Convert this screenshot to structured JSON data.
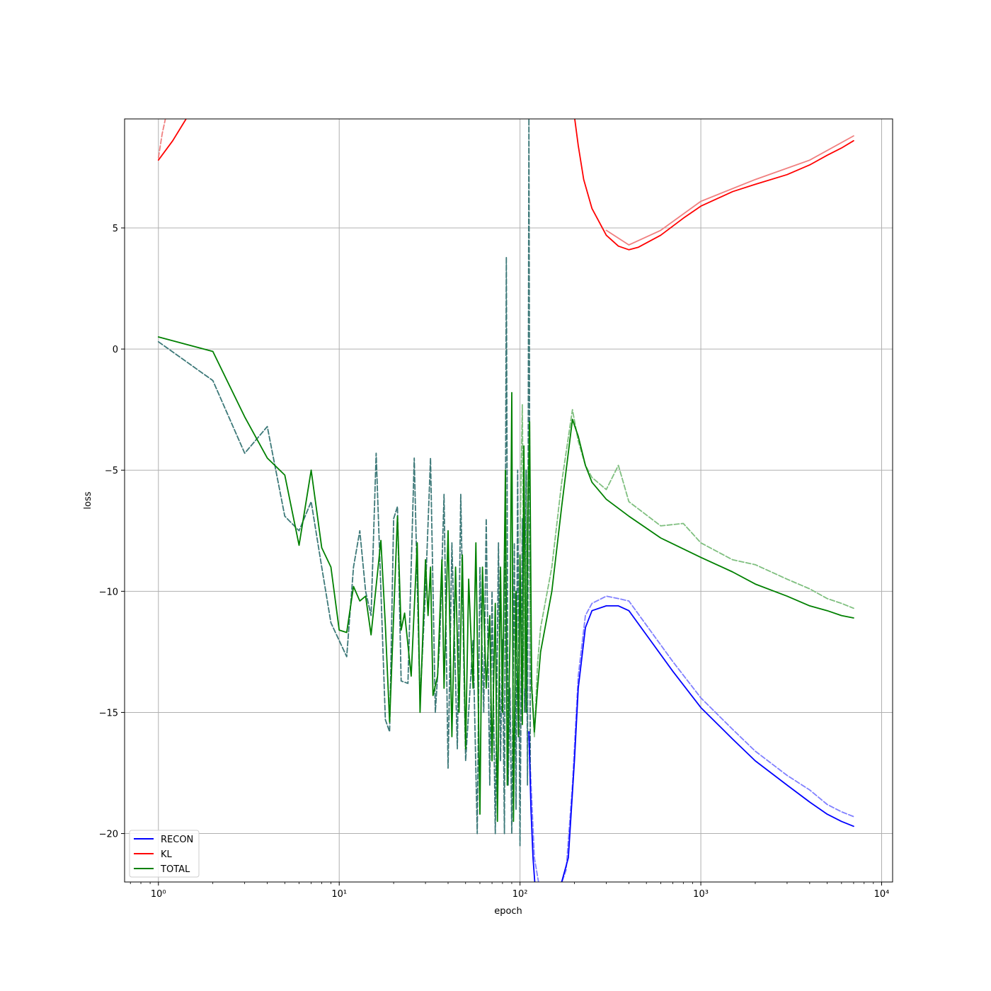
{
  "chart_data": {
    "type": "line",
    "xlabel": "epoch",
    "ylabel": "loss",
    "xscale": "log",
    "xlim": [
      0.65,
      11500
    ],
    "ylim": [
      -22.0,
      9.5
    ],
    "grid": true,
    "legend_position": "lower-left",
    "x_ticks": [
      {
        "value": 1,
        "label": "10⁰"
      },
      {
        "value": 10,
        "label": "10¹"
      },
      {
        "value": 100,
        "label": "10²"
      },
      {
        "value": 1000,
        "label": "10³"
      },
      {
        "value": 10000,
        "label": "10⁴"
      }
    ],
    "y_ticks": [
      {
        "value": 5,
        "label": "5"
      },
      {
        "value": 0,
        "label": "0"
      },
      {
        "value": -5,
        "label": "−5"
      },
      {
        "value": -10,
        "label": "−10"
      },
      {
        "value": -15,
        "label": "−15"
      },
      {
        "value": -20,
        "label": "−20"
      }
    ],
    "series": [
      {
        "name": "RECON",
        "color": "#0000ff",
        "style": "solid",
        "points": [
          [
            112,
            -15.8
          ],
          [
            115,
            -19
          ],
          [
            118,
            -21
          ],
          [
            122,
            -22.5
          ],
          [
            150,
            -23
          ],
          [
            170,
            -22
          ],
          [
            185,
            -21
          ],
          [
            200,
            -17
          ],
          [
            210,
            -14
          ],
          [
            230,
            -11.5
          ],
          [
            250,
            -10.8
          ],
          [
            300,
            -10.6
          ],
          [
            350,
            -10.6
          ],
          [
            400,
            -10.8
          ],
          [
            500,
            -11.8
          ],
          [
            700,
            -13.3
          ],
          [
            1000,
            -14.8
          ],
          [
            1500,
            -16.1
          ],
          [
            2000,
            -17
          ],
          [
            3000,
            -18
          ],
          [
            4000,
            -18.7
          ],
          [
            5000,
            -19.2
          ],
          [
            6000,
            -19.5
          ],
          [
            7000,
            -19.7
          ]
        ]
      },
      {
        "name": "",
        "color": "#8080ff",
        "style": "dashed",
        "points": [
          [
            112,
            -16
          ],
          [
            120,
            -21
          ],
          [
            130,
            -22.5
          ],
          [
            160,
            -22.6
          ],
          [
            180,
            -21.5
          ],
          [
            195,
            -18
          ],
          [
            210,
            -13.5
          ],
          [
            230,
            -11
          ],
          [
            250,
            -10.5
          ],
          [
            300,
            -10.2
          ],
          [
            350,
            -10.3
          ],
          [
            400,
            -10.4
          ],
          [
            500,
            -11.4
          ],
          [
            700,
            -12.9
          ],
          [
            1000,
            -14.4
          ],
          [
            1500,
            -15.7
          ],
          [
            2000,
            -16.6
          ],
          [
            3000,
            -17.6
          ],
          [
            4000,
            -18.2
          ],
          [
            5000,
            -18.8
          ],
          [
            6000,
            -19.1
          ],
          [
            7000,
            -19.3
          ]
        ]
      },
      {
        "name": "KL",
        "color": "#ff0000",
        "style": "solid",
        "points": [
          [
            1,
            7.8
          ],
          [
            1.2,
            8.6
          ],
          [
            1.45,
            9.6
          ],
          [
            200,
            9.6
          ],
          [
            210,
            8.4
          ],
          [
            225,
            7
          ],
          [
            250,
            5.8
          ],
          [
            300,
            4.7
          ],
          [
            350,
            4.25
          ],
          [
            400,
            4.1
          ],
          [
            450,
            4.2
          ],
          [
            600,
            4.7
          ],
          [
            800,
            5.4
          ],
          [
            1000,
            5.9
          ],
          [
            1500,
            6.5
          ],
          [
            2000,
            6.8
          ],
          [
            3000,
            7.2
          ],
          [
            4000,
            7.6
          ],
          [
            5000,
            8.0
          ],
          [
            6000,
            8.3
          ],
          [
            7000,
            8.6
          ]
        ]
      },
      {
        "name": "",
        "color": "#f08080",
        "style": "dashed",
        "points": [
          [
            1,
            7.9
          ],
          [
            1.05,
            8.9
          ],
          [
            1.1,
            9.6
          ]
        ]
      },
      {
        "name": "",
        "color": "#f08080",
        "style": "solid",
        "points": [
          [
            300,
            4.9
          ],
          [
            400,
            4.3
          ],
          [
            600,
            4.9
          ],
          [
            1000,
            6.1
          ],
          [
            2000,
            7.0
          ],
          [
            4000,
            7.8
          ],
          [
            7000,
            8.8
          ]
        ]
      },
      {
        "name": "TOTAL",
        "color": "#008000",
        "style": "solid",
        "points": [
          [
            1,
            0.5
          ],
          [
            2,
            -0.1
          ],
          [
            3,
            -2.8
          ],
          [
            4,
            -4.5
          ],
          [
            5,
            -5.2
          ],
          [
            6,
            -8.1
          ],
          [
            7,
            -5
          ],
          [
            8,
            -8.2
          ],
          [
            9,
            -9
          ],
          [
            10,
            -11.6
          ],
          [
            11,
            -11.7
          ],
          [
            12,
            -9.8
          ],
          [
            13,
            -10.4
          ],
          [
            14,
            -10.2
          ],
          [
            15,
            -11.8
          ],
          [
            17,
            -7.9
          ],
          [
            18,
            -11.4
          ],
          [
            19,
            -15.4
          ],
          [
            21,
            -6.9
          ],
          [
            22,
            -11.6
          ],
          [
            23,
            -10.9
          ],
          [
            25,
            -13.5
          ],
          [
            27,
            -8
          ],
          [
            28,
            -15
          ],
          [
            30,
            -8.7
          ],
          [
            31,
            -11
          ],
          [
            32,
            -9
          ],
          [
            33,
            -14.3
          ],
          [
            35,
            -13.5
          ],
          [
            37,
            -8.7
          ],
          [
            38,
            -14
          ],
          [
            40,
            -7.5
          ],
          [
            42,
            -16
          ],
          [
            44,
            -9
          ],
          [
            46,
            -15
          ],
          [
            48,
            -8.5
          ],
          [
            50,
            -16.5
          ],
          [
            52,
            -9.5
          ],
          [
            55,
            -14
          ],
          [
            57,
            -8
          ],
          [
            60,
            -19.2
          ],
          [
            62,
            -9
          ],
          [
            65,
            -14
          ],
          [
            68,
            -11
          ],
          [
            70,
            -17
          ],
          [
            73,
            -10.5
          ],
          [
            75,
            -19.5
          ],
          [
            78,
            -9
          ],
          [
            80,
            -15
          ],
          [
            83,
            -5
          ],
          [
            85,
            -18
          ],
          [
            88,
            -12
          ],
          [
            90,
            -1.8
          ],
          [
            92,
            -19.5
          ],
          [
            95,
            -10
          ],
          [
            98,
            -16
          ],
          [
            100,
            -8.5
          ],
          [
            103,
            -15.5
          ],
          [
            105,
            -4
          ],
          [
            108,
            -15
          ],
          [
            110,
            -8
          ],
          [
            113,
            -3
          ],
          [
            116,
            -14
          ],
          [
            120,
            -15.8
          ],
          [
            125,
            -14
          ],
          [
            130,
            -12.5
          ],
          [
            150,
            -10
          ],
          [
            170,
            -6.5
          ],
          [
            195,
            -2.9
          ],
          [
            210,
            -3.6
          ],
          [
            230,
            -4.8
          ],
          [
            250,
            -5.5
          ],
          [
            300,
            -6.2
          ],
          [
            400,
            -6.9
          ],
          [
            600,
            -7.8
          ],
          [
            1000,
            -8.6
          ],
          [
            1500,
            -9.2
          ],
          [
            2000,
            -9.7
          ],
          [
            3000,
            -10.2
          ],
          [
            4000,
            -10.6
          ],
          [
            5000,
            -10.8
          ],
          [
            6000,
            -11
          ],
          [
            7000,
            -11.1
          ]
        ]
      },
      {
        "name": "",
        "color": "#3c7878",
        "style": "dashed",
        "points": [
          [
            1,
            0.3
          ],
          [
            2,
            -1.3
          ],
          [
            3,
            -4.3
          ],
          [
            4,
            -3.2
          ],
          [
            5,
            -6.9
          ],
          [
            6,
            -7.5
          ],
          [
            7,
            -6.3
          ],
          [
            8,
            -9
          ],
          [
            9,
            -11.3
          ],
          [
            11,
            -12.7
          ],
          [
            12,
            -9
          ],
          [
            13,
            -7.5
          ],
          [
            14,
            -10
          ],
          [
            15,
            -11
          ],
          [
            16,
            -4.3
          ],
          [
            18,
            -15.3
          ],
          [
            19,
            -15.8
          ],
          [
            20,
            -7
          ],
          [
            21,
            -6.5
          ],
          [
            22,
            -13.7
          ],
          [
            24,
            -13.8
          ],
          [
            26,
            -4.5
          ],
          [
            28,
            -14.5
          ],
          [
            30,
            -10
          ],
          [
            32,
            -4.5
          ],
          [
            34,
            -15
          ],
          [
            36,
            -12
          ],
          [
            38,
            -6
          ],
          [
            40,
            -17.3
          ],
          [
            42,
            -8
          ],
          [
            45,
            -16.5
          ],
          [
            47,
            -6
          ],
          [
            50,
            -17
          ],
          [
            55,
            -12
          ],
          [
            58,
            -20
          ],
          [
            60,
            -9
          ],
          [
            63,
            -15
          ],
          [
            65,
            -7
          ],
          [
            68,
            -18
          ],
          [
            70,
            -10
          ],
          [
            73,
            -20
          ],
          [
            76,
            -8
          ],
          [
            78,
            -17
          ],
          [
            80,
            -12
          ],
          [
            82,
            -20
          ],
          [
            84,
            3.8
          ],
          [
            86,
            -18
          ],
          [
            88,
            -14
          ],
          [
            90,
            -20
          ],
          [
            93,
            -8
          ],
          [
            95,
            -19
          ],
          [
            97,
            -5
          ],
          [
            100,
            -20.5
          ],
          [
            103,
            -7
          ],
          [
            106,
            -15
          ],
          [
            108,
            -5
          ],
          [
            110,
            -18
          ],
          [
            112,
            9.5
          ],
          [
            114,
            -18
          ]
        ]
      },
      {
        "name": "",
        "color": "#7fbf7f",
        "style": "dashed",
        "points": [
          [
            100,
            -8
          ],
          [
            103,
            -2.3
          ],
          [
            106,
            -14
          ],
          [
            110,
            -5
          ],
          [
            115,
            -13
          ],
          [
            120,
            -16
          ],
          [
            125,
            -13
          ],
          [
            130,
            -11.5
          ],
          [
            150,
            -9
          ],
          [
            170,
            -5.5
          ],
          [
            195,
            -2.5
          ],
          [
            210,
            -3.8
          ],
          [
            230,
            -4.8
          ],
          [
            250,
            -5.3
          ],
          [
            300,
            -5.8
          ],
          [
            350,
            -4.8
          ],
          [
            400,
            -6.3
          ],
          [
            600,
            -7.3
          ],
          [
            800,
            -7.2
          ],
          [
            1000,
            -8
          ],
          [
            1500,
            -8.7
          ],
          [
            2000,
            -8.9
          ],
          [
            3000,
            -9.5
          ],
          [
            4000,
            -9.9
          ],
          [
            5000,
            -10.3
          ],
          [
            6000,
            -10.5
          ],
          [
            7000,
            -10.7
          ]
        ]
      }
    ]
  }
}
